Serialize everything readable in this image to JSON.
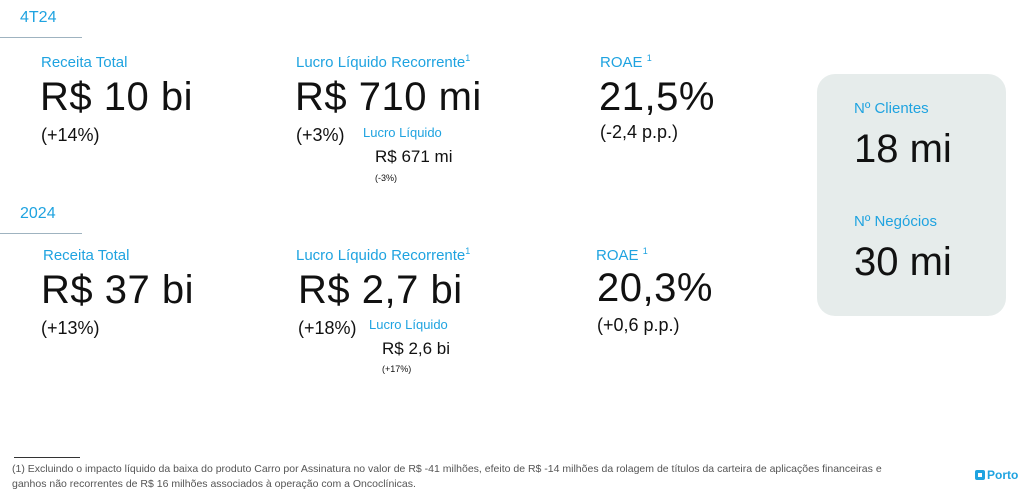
{
  "quarter": {
    "tag": "4T24",
    "revenue": {
      "label": "Receita Total",
      "value": "R$ 10 bi",
      "delta": "(+14%)"
    },
    "net_income_recurring": {
      "label": "Lucro Líquido Recorrente",
      "note_mark": "1",
      "value": "R$ 710 mi",
      "delta": "(+3%)",
      "sub_label": "Lucro Líquido",
      "sub_value": "R$ 671 mi",
      "sub_delta": "(-3%)"
    },
    "roae": {
      "label": "ROAE",
      "note_mark": "1",
      "value": "21,5%",
      "delta": "(-2,4 p.p.)"
    }
  },
  "year": {
    "tag": "2024",
    "revenue": {
      "label": "Receita Total",
      "value": "R$ 37 bi",
      "delta": "(+13%)"
    },
    "net_income_recurring": {
      "label": "Lucro Líquido Recorrente",
      "note_mark": "1",
      "value": "R$ 2,7 bi",
      "delta": "(+18%)",
      "sub_label": "Lucro Líquido",
      "sub_value": "R$ 2,6 bi",
      "sub_delta": "(+17%)"
    },
    "roae": {
      "label": "ROAE",
      "note_mark": "1",
      "value": "20,3%",
      "delta": "(+0,6 p.p.)"
    }
  },
  "side_card": {
    "clients_label": "Nº Clientes",
    "clients_value": "18 mi",
    "business_label": "Nº Negócios",
    "business_value": "30 mi"
  },
  "footnote": "(1) Excluindo o impacto líquido da baixa do produto Carro por Assinatura no valor de R$ -41 milhões, efeito de R$ -14 milhões da rolagem de títulos da carteira de aplicações financeiras e ganhos não recorrentes de R$ 16 milhões associados à operação com a Oncoclínicas.",
  "brand": {
    "name": "Porto",
    "icon": "porto-logo-icon",
    "color": "#1fa3e0"
  },
  "colors": {
    "accent": "#1fa3e0",
    "card_bg": "#e6eceb",
    "text": "#111111"
  }
}
